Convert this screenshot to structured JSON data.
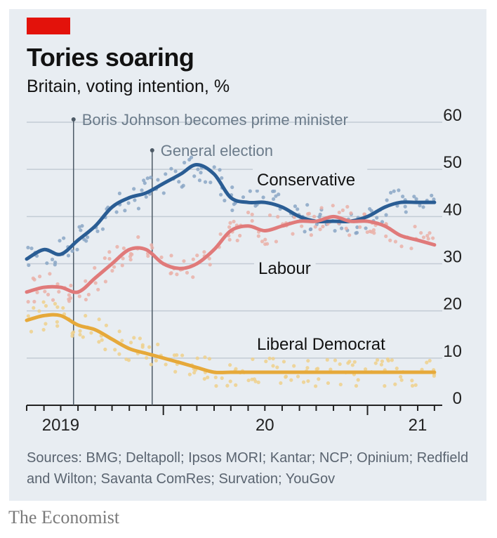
{
  "header": {
    "title": "Tories soaring",
    "subtitle": "Britain, voting intention, %"
  },
  "footer": {
    "sources": "Sources: BMG; Deltapoll; Ipsos MORI; Kantar; NCP; Opinium; Redfield and Wilton; Savanta ComRes; Survation; YouGov",
    "brand": "The Economist"
  },
  "chart_data": {
    "type": "line",
    "ylim": [
      0,
      60
    ],
    "yticks": [
      0,
      10,
      20,
      30,
      40,
      50,
      60
    ],
    "xlim": [
      "2019-05-01",
      "2021-05-15"
    ],
    "xtick_labels": [
      {
        "label": "2019",
        "date": "2019-07-01"
      },
      {
        "label": "20",
        "date": "2020-07-01"
      },
      {
        "label": "21",
        "date": "2021-04-01"
      }
    ],
    "grid": true,
    "annotations": [
      {
        "label": "Boris Johnson becomes prime minister",
        "date": "2019-07-24"
      },
      {
        "label": "General election",
        "date": "2019-12-12"
      }
    ],
    "series": [
      {
        "name": "Conservative",
        "color": "#2a5d94",
        "dot_color": "#8aa6c6",
        "x": [
          "2019-05-01",
          "2019-06-01",
          "2019-07-01",
          "2019-08-01",
          "2019-09-01",
          "2019-10-01",
          "2019-11-01",
          "2019-12-01",
          "2020-01-01",
          "2020-02-01",
          "2020-03-01",
          "2020-04-01",
          "2020-05-01",
          "2020-06-01",
          "2020-07-01",
          "2020-08-01",
          "2020-09-01",
          "2020-10-01",
          "2020-11-01",
          "2020-12-01",
          "2021-01-01",
          "2021-02-01",
          "2021-03-01",
          "2021-04-01",
          "2021-05-01"
        ],
        "values": [
          31,
          33,
          32,
          35,
          38,
          42,
          44,
          45,
          47,
          49,
          51,
          49,
          44,
          43,
          43,
          42,
          40,
          39,
          39,
          39,
          40,
          42,
          43,
          43,
          43
        ]
      },
      {
        "name": "Labour",
        "color": "#e07a7a",
        "dot_color": "#eab0a8",
        "x": [
          "2019-05-01",
          "2019-06-01",
          "2019-07-01",
          "2019-08-01",
          "2019-09-01",
          "2019-10-01",
          "2019-11-01",
          "2019-12-01",
          "2020-01-01",
          "2020-02-01",
          "2020-03-01",
          "2020-04-01",
          "2020-05-01",
          "2020-06-01",
          "2020-07-01",
          "2020-08-01",
          "2020-09-01",
          "2020-10-01",
          "2020-11-01",
          "2020-12-01",
          "2021-01-01",
          "2021-02-01",
          "2021-03-01",
          "2021-04-01",
          "2021-05-01"
        ],
        "values": [
          24,
          25,
          25,
          24,
          27,
          30,
          33,
          33,
          30,
          29,
          30,
          33,
          37,
          38,
          37,
          38,
          39,
          39,
          40,
          39,
          39,
          38,
          36,
          35,
          34
        ]
      },
      {
        "name": "Liberal Democrat",
        "color": "#e6a93a",
        "dot_color": "#efd08c",
        "x": [
          "2019-05-01",
          "2019-06-01",
          "2019-07-01",
          "2019-08-01",
          "2019-09-01",
          "2019-10-01",
          "2019-11-01",
          "2019-12-01",
          "2020-01-01",
          "2020-02-01",
          "2020-03-01",
          "2020-04-01",
          "2020-05-01",
          "2020-06-01",
          "2020-07-01",
          "2020-08-01",
          "2020-09-01",
          "2020-10-01",
          "2020-11-01",
          "2020-12-01",
          "2021-01-01",
          "2021-02-01",
          "2021-03-01",
          "2021-04-01",
          "2021-05-01"
        ],
        "values": [
          18,
          19,
          19,
          17,
          16,
          14,
          12,
          11,
          10,
          9,
          8,
          7,
          7,
          7,
          7,
          7,
          7,
          7,
          7,
          7,
          7,
          7,
          7,
          7,
          7
        ]
      }
    ]
  }
}
